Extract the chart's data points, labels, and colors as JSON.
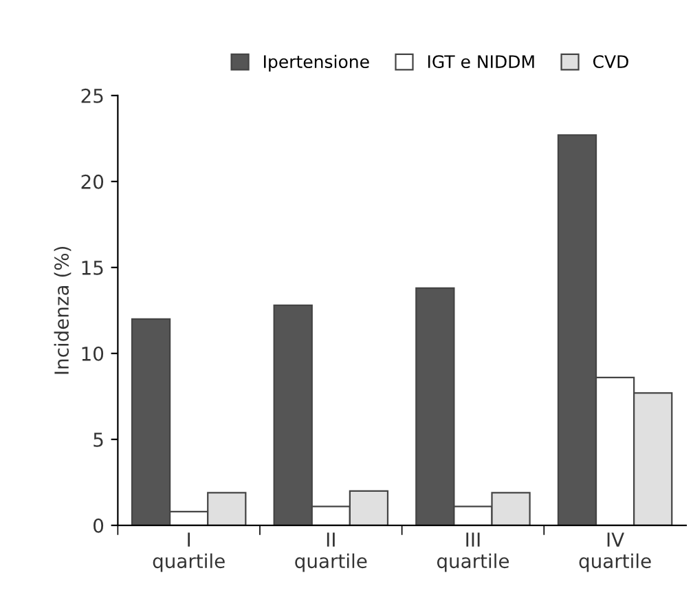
{
  "chart_data": {
    "type": "bar",
    "ylabel": "Incidenza (%)",
    "categories": [
      "I\nquartile",
      "II\nquartile",
      "III\nquartile",
      "IV\nquartile"
    ],
    "series": [
      {
        "name": "Ipertensione",
        "color": "#555555",
        "values": [
          12.0,
          12.8,
          13.8,
          22.7
        ]
      },
      {
        "name": "IGT e NIDDM",
        "color": "#ffffff",
        "values": [
          0.8,
          1.1,
          1.1,
          8.6
        ]
      },
      {
        "name": "CVD",
        "color": "#e0e0e0",
        "values": [
          1.9,
          2.0,
          1.9,
          7.7
        ]
      }
    ],
    "ylim": [
      0,
      25
    ],
    "yticks": [
      0,
      5,
      10,
      15,
      20,
      25
    ],
    "grid": false,
    "legend": "top"
  }
}
